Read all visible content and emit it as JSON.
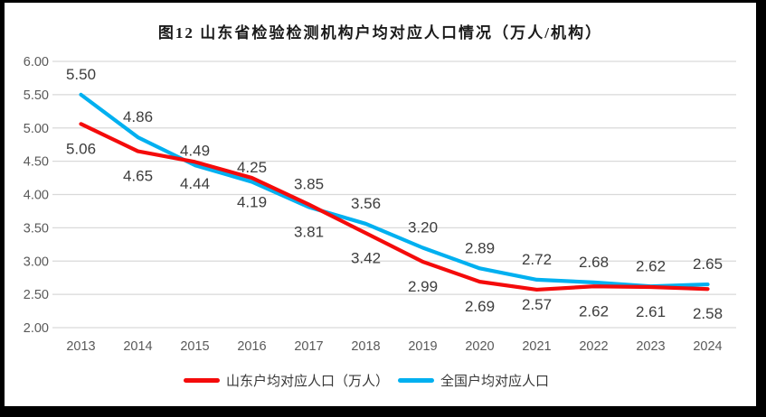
{
  "title": "图12 山东省检验检测机构户均对应人口情况（万人/机构）",
  "chart_data": {
    "type": "line",
    "categories": [
      "2013",
      "2014",
      "2015",
      "2016",
      "2017",
      "2018",
      "2019",
      "2020",
      "2021",
      "2022",
      "2023",
      "2024"
    ],
    "series": [
      {
        "name": "山东户均对应人口（万人）",
        "color": "#f40b0b",
        "values": [
          5.06,
          4.65,
          4.49,
          4.25,
          3.85,
          3.42,
          2.99,
          2.69,
          2.57,
          2.62,
          2.61,
          2.58
        ]
      },
      {
        "name": "全国户均对应人口",
        "color": "#00b0f0",
        "values": [
          5.5,
          4.86,
          4.44,
          4.19,
          3.81,
          3.56,
          3.2,
          2.89,
          2.72,
          2.68,
          2.62,
          2.65
        ]
      }
    ],
    "ylim": [
      2.0,
      6.0
    ],
    "ytick_step": 0.5,
    "ytick_labels": [
      "2.00",
      "2.50",
      "3.00",
      "3.50",
      "4.00",
      "4.50",
      "5.00",
      "5.50",
      "6.00"
    ],
    "grid": true,
    "legend_position": "bottom",
    "data_labels": true,
    "gridline_color": "#d9d9d9",
    "axis_label_color": "#595959",
    "data_label_color": "#3d3d3d"
  }
}
